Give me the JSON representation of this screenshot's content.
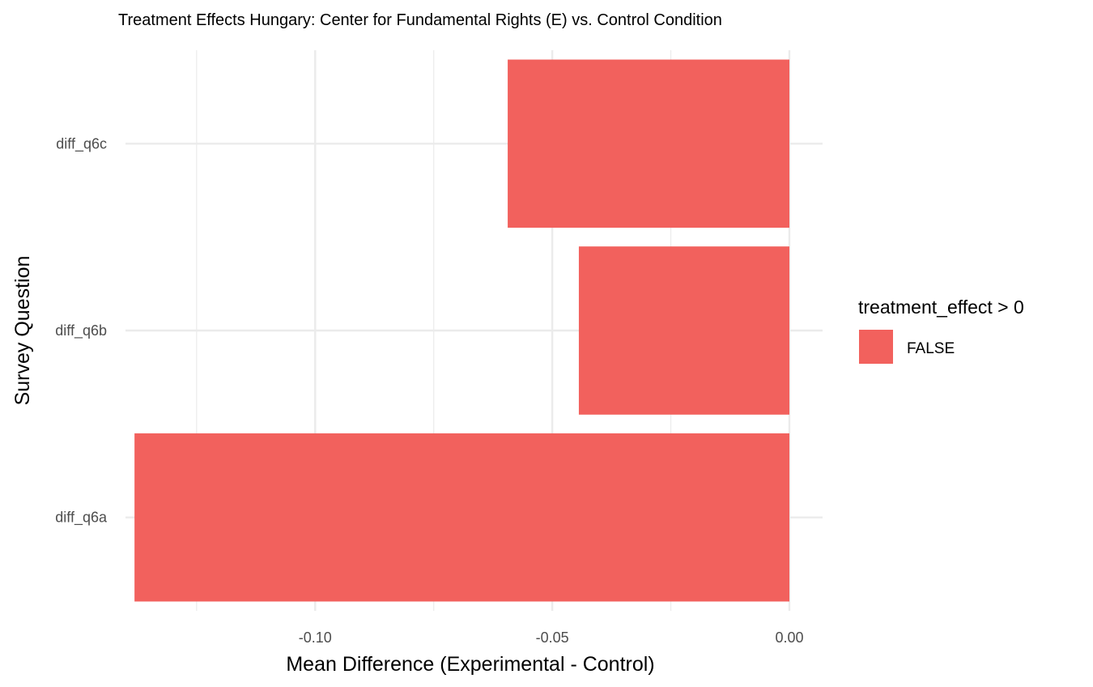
{
  "chart_data": {
    "type": "bar",
    "orientation": "horizontal",
    "title": "Treatment Effects Hungary: Center for Fundamental Rights (E)  vs. Control Condition",
    "xlabel": "Mean Difference (Experimental - Control)",
    "ylabel": "Survey Question",
    "categories": [
      "diff_q6a",
      "diff_q6b",
      "diff_q6c"
    ],
    "values": [
      -0.1381,
      -0.0444,
      -0.0594
    ],
    "fill_group": [
      "FALSE",
      "FALSE",
      "FALSE"
    ],
    "xlim": [
      -0.14,
      0.007
    ],
    "x_ticks": [
      {
        "value": -0.1,
        "label": "-0.10"
      },
      {
        "value": -0.05,
        "label": "-0.05"
      },
      {
        "value": 0,
        "label": "0.00"
      }
    ],
    "x_minor_ticks": [
      -0.125,
      -0.075,
      -0.025
    ],
    "grid": true,
    "legend": {
      "position": "right",
      "title": "treatment_effect > 0",
      "items": [
        {
          "label": "FALSE",
          "color": "#F2615D"
        }
      ]
    },
    "colors": {
      "bar": "#F2615D",
      "grid": "#ebebeb",
      "tick_text": "#4d4d4d"
    }
  }
}
